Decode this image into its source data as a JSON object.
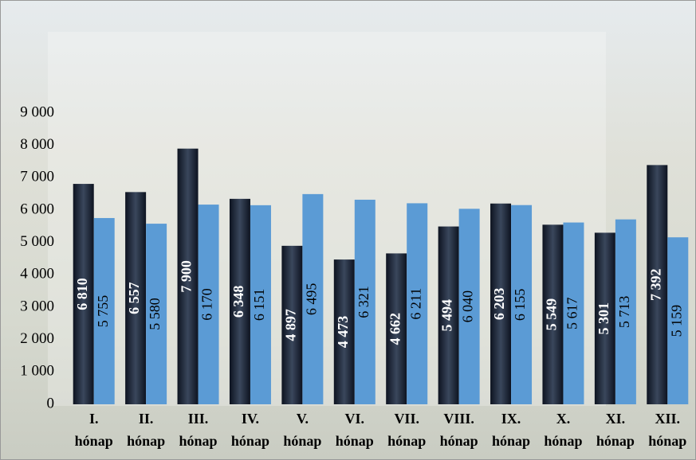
{
  "chart_data": {
    "type": "bar",
    "categories": [
      "I. hónap",
      "II. hónap",
      "III. hónap",
      "IV. hónap",
      "V. hónap",
      "VI. hónap",
      "VII. hónap",
      "VIII. hónap",
      "IX. hónap",
      "X. hónap",
      "XI. hónap",
      "XII. hónap"
    ],
    "series": [
      {
        "color": "#1f2a3c",
        "values": [
          6810,
          6557,
          7900,
          6348,
          4897,
          4473,
          4662,
          5494,
          6203,
          5549,
          5301,
          7392
        ],
        "value_labels": [
          "6 810",
          "6 557",
          "7 900",
          "6 348",
          "4 897",
          "4 473",
          "4 662",
          "5 494",
          "6 203",
          "5 549",
          "5 301",
          "7 392"
        ]
      },
      {
        "color": "#5b9bd5",
        "values": [
          5755,
          5580,
          6170,
          6151,
          6495,
          6321,
          6211,
          6040,
          6155,
          5617,
          5713,
          5159
        ],
        "value_labels": [
          "5 755",
          "5 580",
          "6 170",
          "6 151",
          "6 495",
          "6 321",
          "6 211",
          "6 040",
          "6 155",
          "5 617",
          "5 713",
          "5 159"
        ]
      }
    ],
    "ylim": [
      0,
      9000
    ],
    "yticks": [
      0,
      {
        "value": 1000,
        "label": "1 000"
      },
      {
        "value": 2000,
        "label": "2 000"
      },
      {
        "value": 3000,
        "label": "3 000"
      },
      {
        "value": 4000,
        "label": "4 000"
      },
      {
        "value": 5000,
        "label": "5 000"
      },
      {
        "value": 6000,
        "label": "6 000"
      },
      {
        "value": 7000,
        "label": "7 000"
      },
      {
        "value": 8000,
        "label": "8 000"
      },
      {
        "value": 9000,
        "label": "9 000"
      }
    ],
    "grid": false
  }
}
